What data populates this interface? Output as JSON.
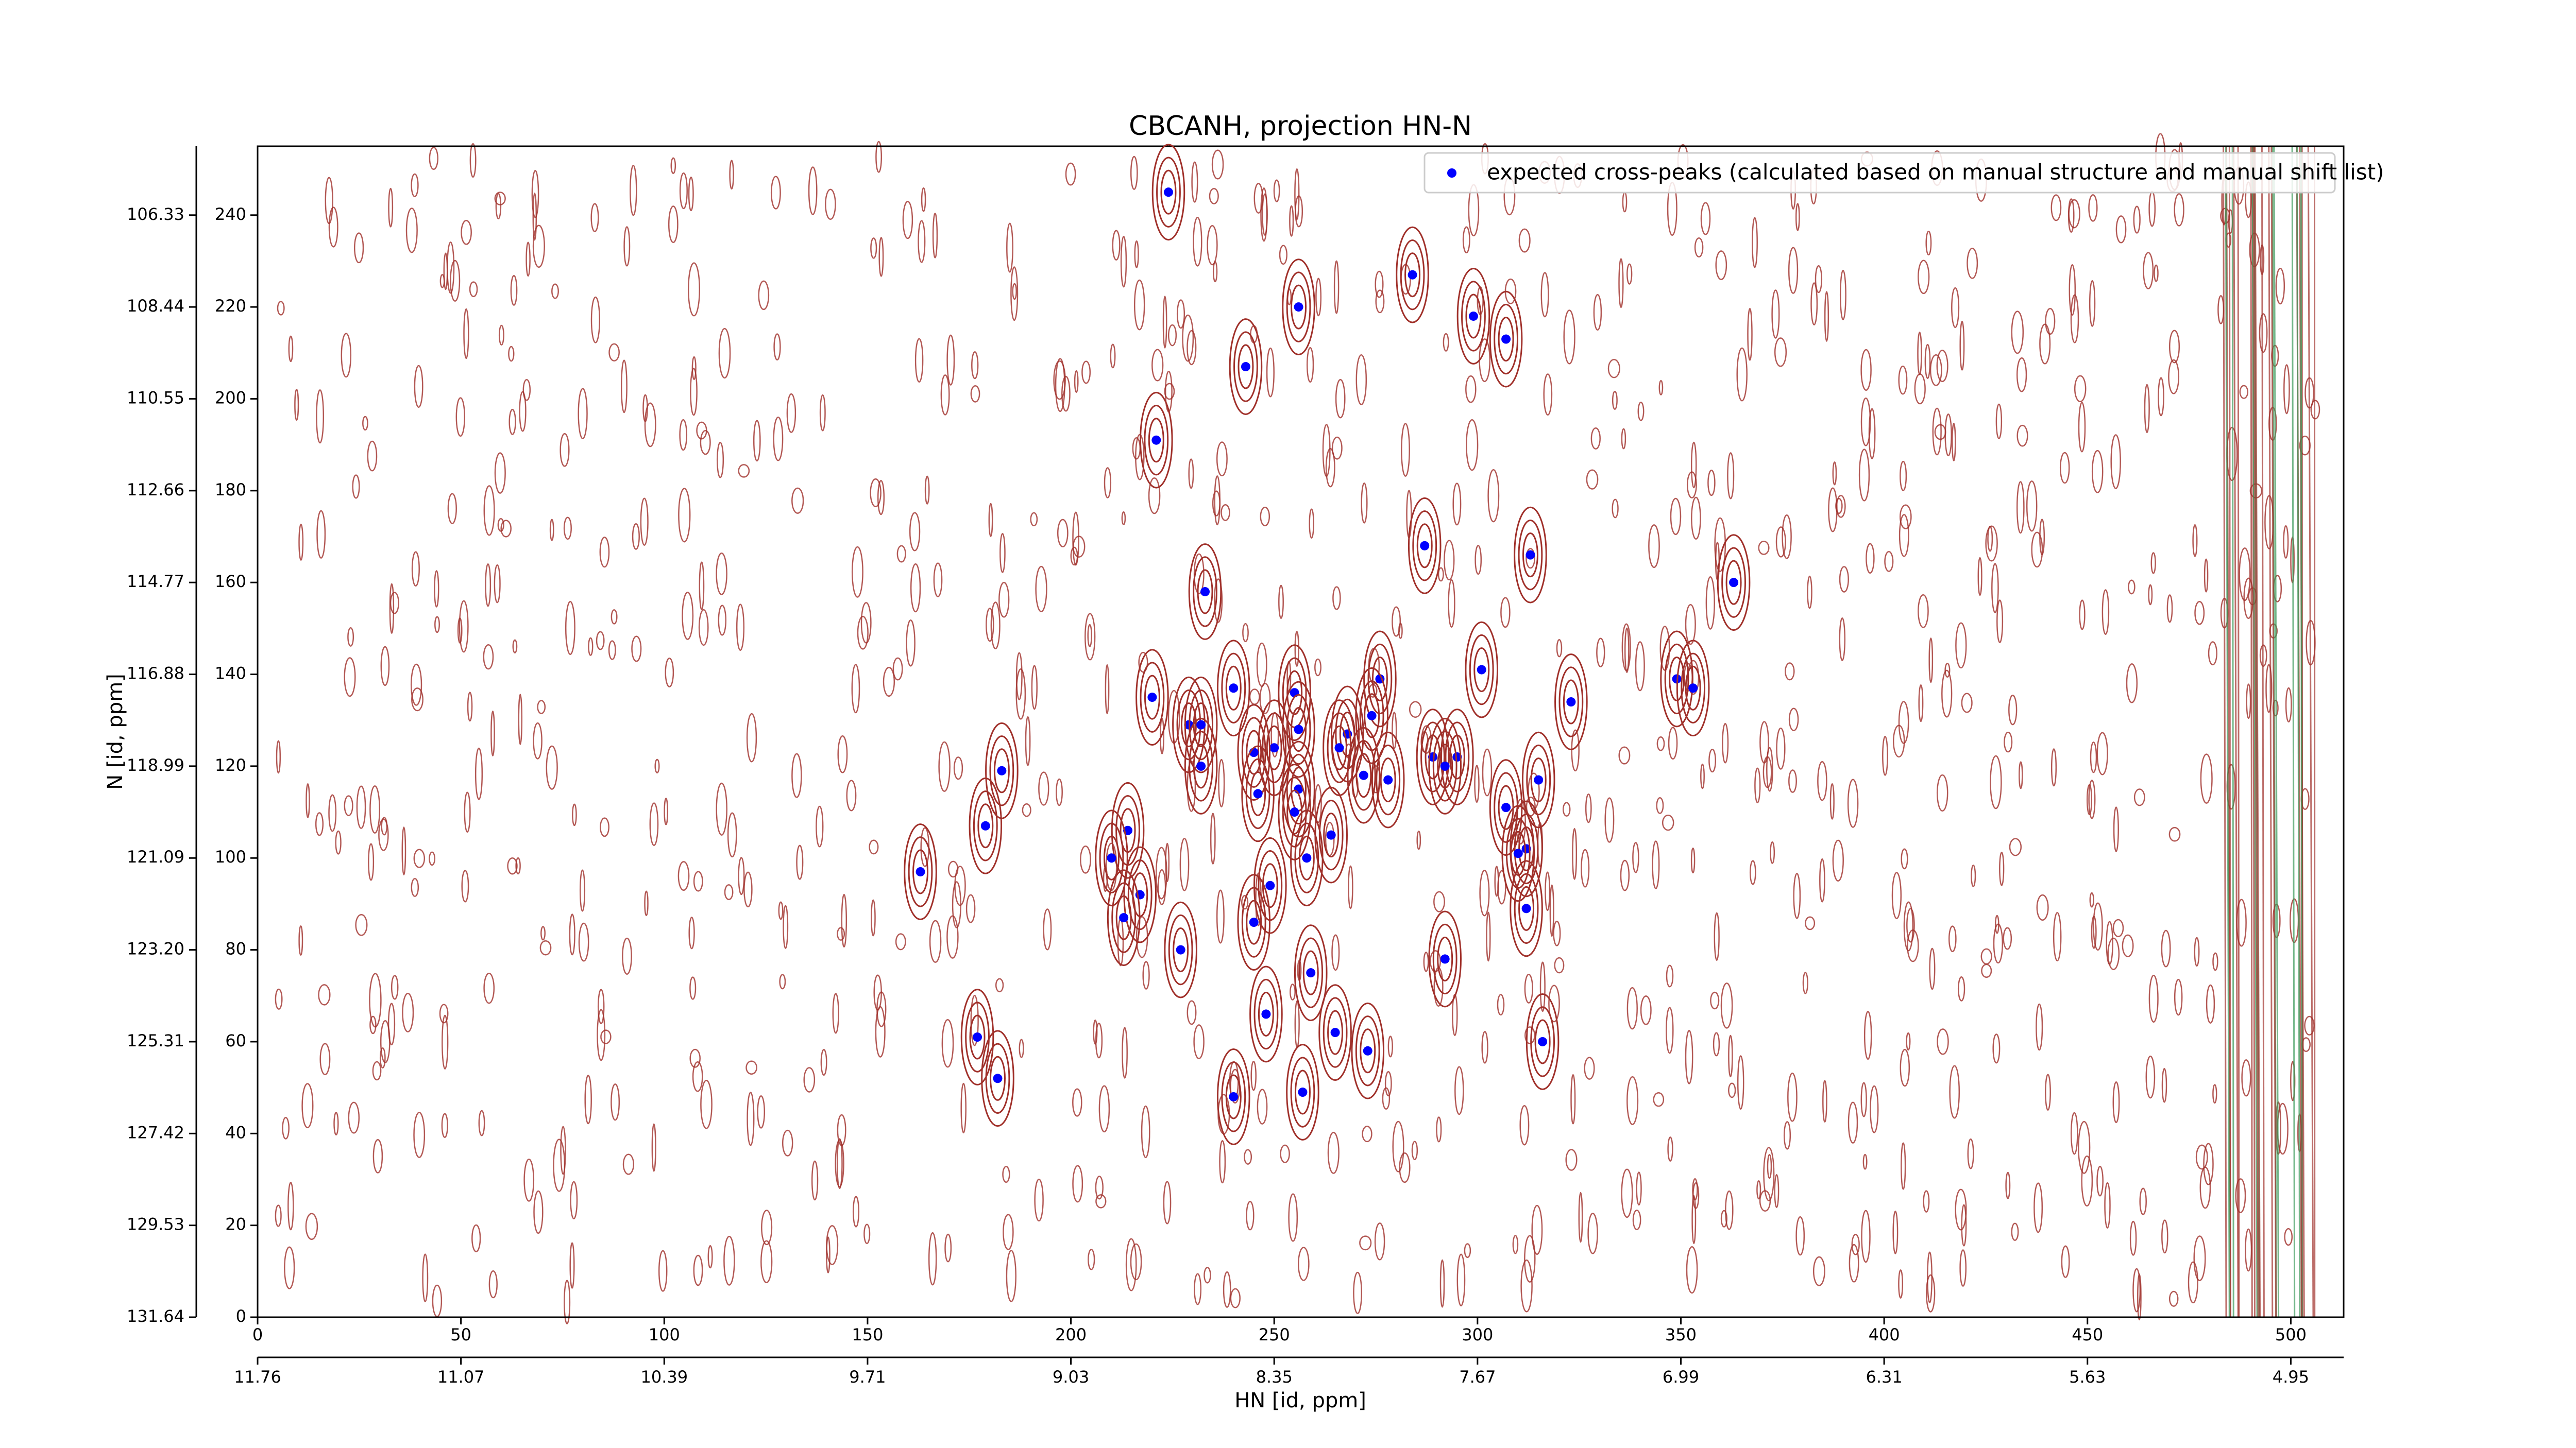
{
  "chart_data": {
    "type": "scatter",
    "title": "CBCANH, projection HN-N",
    "xlabel": "HN [id, ppm]",
    "ylabel": "N [id, ppm]",
    "xlim": [
      0,
      513
    ],
    "ylim": [
      0,
      255
    ],
    "xticks": [
      0,
      50,
      100,
      150,
      200,
      250,
      300,
      350,
      400,
      450,
      500
    ],
    "yticks": [
      0,
      20,
      40,
      60,
      80,
      100,
      120,
      140,
      160,
      180,
      200,
      220,
      240
    ],
    "x2ticks": [
      {
        "value": 0,
        "label": "11.76"
      },
      {
        "value": 50,
        "label": "11.07"
      },
      {
        "value": 100,
        "label": "10.39"
      },
      {
        "value": 150,
        "label": "9.71"
      },
      {
        "value": 200,
        "label": "9.03"
      },
      {
        "value": 250,
        "label": "8.35"
      },
      {
        "value": 300,
        "label": "7.67"
      },
      {
        "value": 350,
        "label": "6.99"
      },
      {
        "value": 400,
        "label": "6.31"
      },
      {
        "value": 450,
        "label": "5.63"
      },
      {
        "value": 500,
        "label": "4.95"
      }
    ],
    "y2ticks": [
      {
        "value": 0,
        "label": "131.64"
      },
      {
        "value": 20,
        "label": "129.53"
      },
      {
        "value": 40,
        "label": "127.42"
      },
      {
        "value": 60,
        "label": "125.31"
      },
      {
        "value": 80,
        "label": "123.20"
      },
      {
        "value": 100,
        "label": "121.09"
      },
      {
        "value": 120,
        "label": "118.99"
      },
      {
        "value": 140,
        "label": "116.88"
      },
      {
        "value": 160,
        "label": "114.77"
      },
      {
        "value": 180,
        "label": "112.66"
      },
      {
        "value": 200,
        "label": "110.55"
      },
      {
        "value": 220,
        "label": "108.44"
      },
      {
        "value": 240,
        "label": "106.33"
      }
    ],
    "legend": "upper right",
    "x": [
      224,
      284,
      256,
      299,
      307,
      243,
      221,
      287,
      313,
      233,
      363,
      301,
      276,
      349,
      353,
      240,
      255,
      220,
      323,
      274,
      229,
      232,
      256,
      268,
      266,
      250,
      245,
      289,
      295,
      183,
      232,
      272,
      278,
      292,
      315,
      256,
      246,
      307,
      255,
      179,
      214,
      264,
      312,
      310,
      210,
      258,
      163,
      249,
      217,
      312,
      213,
      245,
      227,
      292,
      259,
      248,
      265,
      177,
      316,
      273,
      182,
      240,
      257
    ],
    "series": [
      {
        "name": "expected cross-peaks (calculated based on manual structure and manual shift list)",
        "color": "#0000ff",
        "values": [
          245,
          227,
          220,
          218,
          213,
          207,
          191,
          168,
          166,
          158,
          160,
          141,
          139,
          139,
          137,
          137,
          136,
          135,
          134,
          131,
          129,
          129,
          128,
          127,
          124,
          124,
          123,
          122,
          122,
          119,
          120,
          118,
          117,
          120,
          117,
          115,
          114,
          111,
          110,
          107,
          106,
          105,
          102,
          101,
          100,
          100,
          97,
          94,
          92,
          89,
          87,
          86,
          80,
          78,
          75,
          66,
          62,
          61,
          60,
          58,
          52,
          48,
          49
        ]
      }
    ]
  }
}
